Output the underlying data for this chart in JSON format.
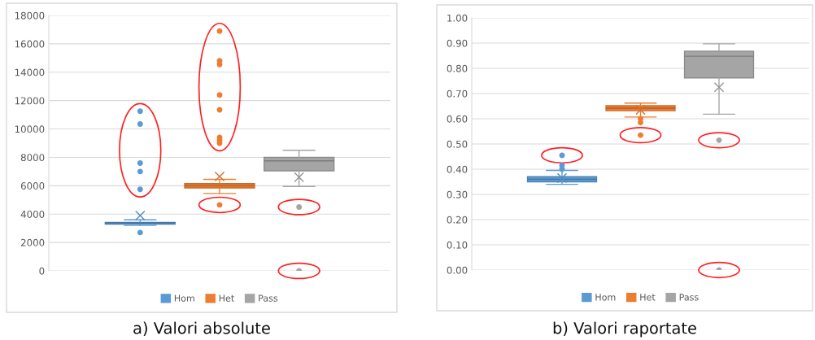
{
  "chart_data": [
    {
      "type": "box",
      "title": "a) Valori absolute",
      "categories": [
        null
      ],
      "grid": "y",
      "legend": "bottom",
      "ylim": [
        0,
        18000
      ],
      "yticks": [
        0,
        2000,
        4000,
        6000,
        8000,
        10000,
        12000,
        14000,
        16000,
        18000
      ],
      "series": [
        {
          "name": "Hom",
          "color": "#5b9bd5",
          "boxes": [
            {
              "low": 3200,
              "q1": 3300,
              "median": 3380,
              "q3": 3420,
              "high": 3600,
              "mean": 3900,
              "outliers": [
                11250,
                10350,
                7600,
                7000,
                5750,
                2700
              ]
            }
          ]
        },
        {
          "name": "Het",
          "color": "#ed7d31",
          "boxes": [
            {
              "low": 5450,
              "q1": 5850,
              "median": 6000,
              "q3": 6150,
              "high": 6450,
              "mean": 6650,
              "outliers": [
                16900,
                14800,
                14550,
                12400,
                11350,
                9400,
                9200,
                9000,
                4650
              ]
            }
          ]
        },
        {
          "name": "Pass",
          "color": "#a5a5a5",
          "boxes": [
            {
              "low": 5950,
              "q1": 7050,
              "median": 7750,
              "q3": 8000,
              "high": 8500,
              "mean": 6600,
              "outliers": [
                4500,
                0
              ]
            }
          ]
        }
      ]
    },
    {
      "type": "box",
      "title": "b) Valori raportate",
      "categories": [
        null
      ],
      "grid": "y",
      "legend": "bottom",
      "ylim": [
        0,
        1
      ],
      "yticks": [
        {
          "value": 0,
          "label": "0.00"
        },
        {
          "value": 0.1,
          "label": "0.10"
        },
        {
          "value": 0.2,
          "label": "0.20"
        },
        {
          "value": 0.3,
          "label": "0.30"
        },
        {
          "value": 0.4,
          "label": "0.40"
        },
        {
          "value": 0.5,
          "label": "0.50"
        },
        {
          "value": 0.6,
          "label": "0.60"
        },
        {
          "value": 0.7,
          "label": "0.70"
        },
        {
          "value": 0.8,
          "label": "0.80"
        },
        {
          "value": 0.9,
          "label": "0.90"
        },
        {
          "value": 1,
          "label": "1.00"
        }
      ],
      "series": [
        {
          "name": "Hom",
          "color": "#5b9bd5",
          "boxes": [
            {
              "low": 0.34,
              "q1": 0.35,
              "median": 0.36,
              "q3": 0.37,
              "high": 0.395,
              "mean": 0.365,
              "outliers": [
                0.455,
                0.415,
                0.4
              ]
            }
          ]
        },
        {
          "name": "Het",
          "color": "#ed7d31",
          "boxes": [
            {
              "low": 0.607,
              "q1": 0.632,
              "median": 0.642,
              "q3": 0.652,
              "high": 0.662,
              "mean": 0.635,
              "outliers": [
                0.6,
                0.585,
                0.535
              ]
            }
          ]
        },
        {
          "name": "Pass",
          "color": "#a5a5a5",
          "boxes": [
            {
              "low": 0.618,
              "q1": 0.762,
              "median": 0.848,
              "q3": 0.868,
              "high": 0.897,
              "mean": 0.725,
              "outliers": [
                0.515,
                0
              ]
            }
          ]
        }
      ]
    }
  ]
}
